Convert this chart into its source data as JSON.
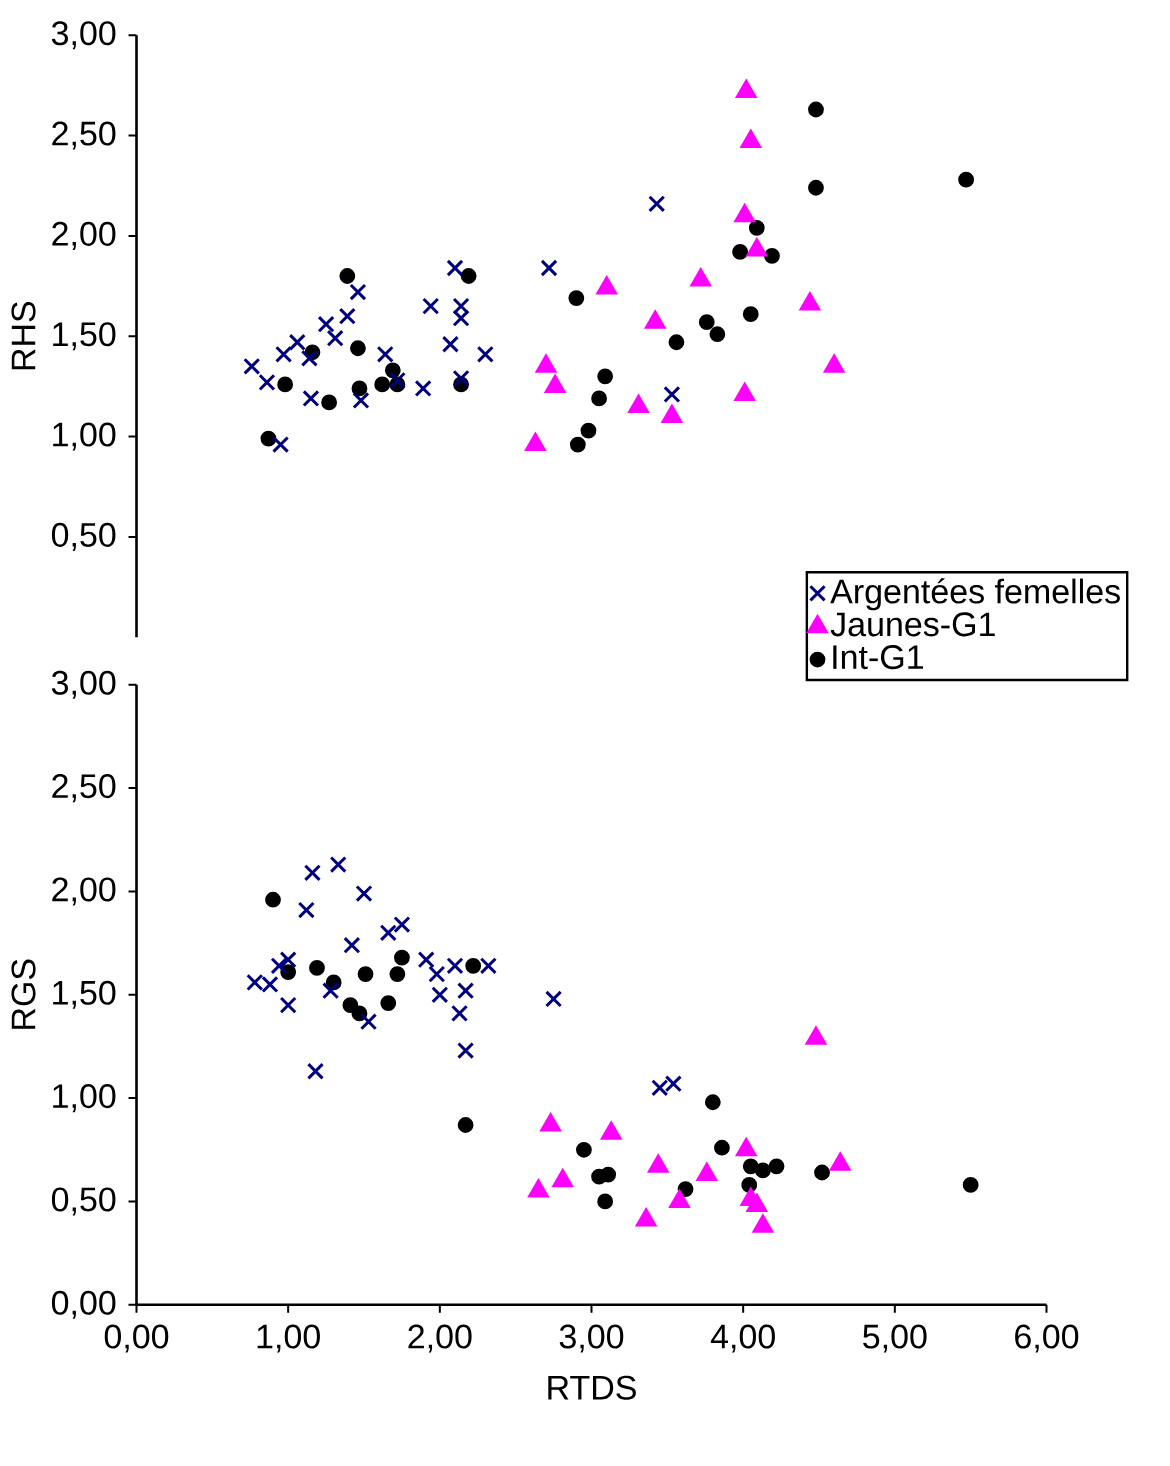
{
  "chart_data": [
    {
      "type": "scatter",
      "ylabel": "RHS",
      "xlim": [
        0,
        6
      ],
      "ylim": [
        0,
        3
      ],
      "tick_labels": "y",
      "legend": "bottom right",
      "yticks": [
        {
          "value": 0.5,
          "label": "0,50"
        },
        {
          "value": 1,
          "label": "1,00"
        },
        {
          "value": 1.5,
          "label": "1,50"
        },
        {
          "value": 2,
          "label": "2,00"
        },
        {
          "value": 2.5,
          "label": "2,50"
        },
        {
          "value": 3,
          "label": "3,00"
        }
      ],
      "series": [
        {
          "name": "Argentées femelles",
          "color": "#000080",
          "marker": "cross",
          "x": [
            0.76,
            0.86,
            0.97,
            0.95,
            1.06,
            1.14,
            1.15,
            1.25,
            1.31,
            1.39,
            1.46,
            1.48,
            1.64,
            1.72,
            1.89,
            1.94,
            2.07,
            2.1,
            2.14,
            2.14,
            2.14,
            2.3,
            2.72,
            3.43,
            3.53
          ],
          "values": [
            1.35,
            1.27,
            1.41,
            0.96,
            1.47,
            1.39,
            1.19,
            1.56,
            1.49,
            1.6,
            1.72,
            1.18,
            1.41,
            1.28,
            1.24,
            1.65,
            1.46,
            1.84,
            1.65,
            1.59,
            1.29,
            1.41,
            1.84,
            2.16,
            1.21
          ]
        },
        {
          "name": "Jaunes-G1",
          "color": "#ff00ff",
          "marker": "triangle",
          "x": [
            2.7,
            2.76,
            2.63,
            3.1,
            3.42,
            3.31,
            3.53,
            3.72,
            4.02,
            4.05,
            4.01,
            4.09,
            4.01,
            4.44,
            4.6
          ],
          "values": [
            1.35,
            1.25,
            0.96,
            1.74,
            1.57,
            1.15,
            1.1,
            1.78,
            2.72,
            2.47,
            2.1,
            1.93,
            1.21,
            1.66,
            1.35
          ]
        },
        {
          "name": "Int-G1",
          "color": "#000000",
          "marker": "circle",
          "x": [
            0.87,
            0.98,
            1.16,
            1.27,
            1.39,
            1.46,
            1.47,
            1.62,
            1.69,
            1.72,
            2.14,
            2.19,
            2.9,
            2.91,
            2.98,
            3.09,
            3.05,
            3.56,
            3.76,
            3.83,
            4.05,
            3.98,
            4.09,
            4.19,
            4.48,
            4.48,
            5.47
          ],
          "values": [
            0.99,
            1.26,
            1.42,
            1.17,
            1.8,
            1.44,
            1.24,
            1.26,
            1.33,
            1.26,
            1.26,
            1.8,
            1.69,
            0.96,
            1.03,
            1.3,
            1.19,
            1.47,
            1.57,
            1.51,
            1.61,
            1.92,
            2.04,
            1.9,
            2.63,
            2.24,
            2.28
          ]
        }
      ]
    },
    {
      "type": "scatter",
      "xlabel": "RTDS",
      "ylabel": "RGS",
      "xlim": [
        0,
        6
      ],
      "ylim": [
        0,
        3
      ],
      "legend": false,
      "xticks": [
        {
          "value": 0,
          "label": "0,00"
        },
        {
          "value": 1,
          "label": "1,00"
        },
        {
          "value": 2,
          "label": "2,00"
        },
        {
          "value": 3,
          "label": "3,00"
        },
        {
          "value": 4,
          "label": "4,00"
        },
        {
          "value": 5,
          "label": "5,00"
        },
        {
          "value": 6,
          "label": "6,00"
        }
      ],
      "yticks": [
        {
          "value": 0,
          "label": "0,00"
        },
        {
          "value": 0.5,
          "label": "0,50"
        },
        {
          "value": 1,
          "label": "1,00"
        },
        {
          "value": 1.5,
          "label": "1,50"
        },
        {
          "value": 2,
          "label": "2,00"
        },
        {
          "value": 2.5,
          "label": "2,50"
        },
        {
          "value": 3,
          "label": "3,00"
        }
      ],
      "series": [
        {
          "color": "#000080",
          "marker": "cross",
          "x": [
            0.78,
            0.88,
            1.0,
            0.94,
            1.0,
            1.12,
            1.16,
            1.18,
            1.28,
            1.33,
            1.42,
            1.5,
            1.53,
            1.66,
            1.75,
            1.91,
            1.98,
            2.0,
            2.1,
            2.17,
            2.13,
            2.17,
            2.32,
            2.75,
            3.45,
            3.54
          ],
          "values": [
            1.56,
            1.55,
            1.67,
            1.64,
            1.45,
            1.91,
            2.09,
            1.13,
            1.52,
            2.13,
            1.74,
            1.99,
            1.37,
            1.8,
            1.84,
            1.67,
            1.6,
            1.5,
            1.64,
            1.52,
            1.41,
            1.23,
            1.64,
            1.48,
            1.05,
            1.07
          ]
        },
        {
          "color": "#ff00ff",
          "marker": "triangle",
          "x": [
            2.73,
            2.81,
            2.65,
            3.13,
            3.44,
            3.36,
            3.58,
            3.76,
            4.02,
            4.48,
            4.64,
            4.05,
            4.09,
            4.13
          ],
          "values": [
            0.87,
            0.6,
            0.55,
            0.83,
            0.67,
            0.41,
            0.5,
            0.63,
            0.75,
            1.29,
            0.68,
            0.51,
            0.48,
            0.38
          ]
        },
        {
          "color": "#000000",
          "marker": "circle",
          "x": [
            0.9,
            1.0,
            1.19,
            1.3,
            1.41,
            1.47,
            1.51,
            1.66,
            1.72,
            1.75,
            2.22,
            2.17,
            2.95,
            3.05,
            3.11,
            3.09,
            3.62,
            3.8,
            3.86,
            4.05,
            4.13,
            4.22,
            4.04,
            4.52,
            5.5
          ],
          "values": [
            1.96,
            1.61,
            1.63,
            1.56,
            1.45,
            1.41,
            1.6,
            1.46,
            1.6,
            1.68,
            1.64,
            0.87,
            0.75,
            0.62,
            0.63,
            0.5,
            0.56,
            0.98,
            0.76,
            0.67,
            0.65,
            0.67,
            0.58,
            0.64,
            0.58
          ]
        }
      ]
    }
  ]
}
